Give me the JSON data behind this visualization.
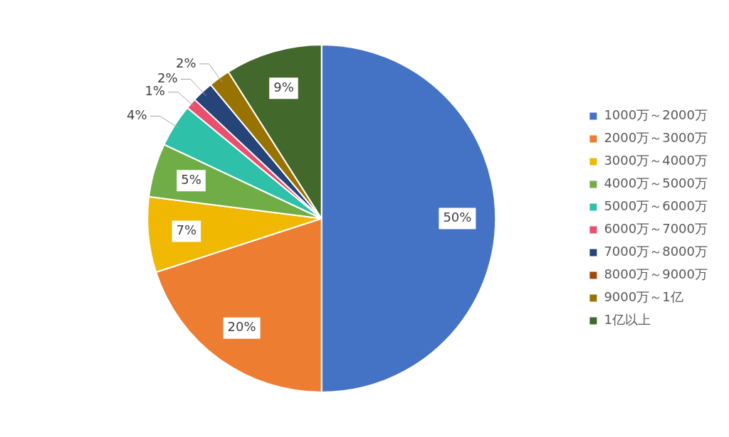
{
  "chart_data": {
    "type": "pie",
    "categories": [
      "1000万～2000万",
      "2000万～3000万",
      "3000万～4000万",
      "4000万～5000万",
      "5000万～6000万",
      "6000万～7000万",
      "7000万～8000万",
      "8000万～9000万",
      "9000万～1亿",
      "1亿以上"
    ],
    "values": [
      50,
      20,
      7,
      5,
      4,
      1,
      2,
      0,
      2,
      9
    ],
    "value_labels": [
      "50%",
      "20%",
      "7%",
      "5%",
      "4%",
      "1%",
      "2%",
      null,
      "2%",
      "9%"
    ],
    "colors": [
      "#4472c4",
      "#ed7d31",
      "#f0b800",
      "#70ad47",
      "#2fc0aa",
      "#e8506e",
      "#264478",
      "#9e480e",
      "#997300",
      "#43682b"
    ],
    "legend": "right"
  }
}
